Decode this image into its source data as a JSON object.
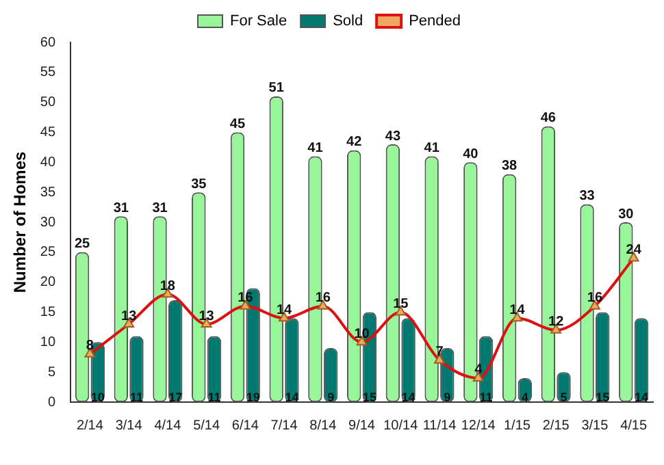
{
  "chart_data": {
    "type": "bar",
    "ylabel": "Number of Homes",
    "categories": [
      "2/14",
      "3/14",
      "4/14",
      "5/14",
      "6/14",
      "7/14",
      "8/14",
      "9/14",
      "10/14",
      "11/14",
      "12/14",
      "1/15",
      "2/15",
      "3/15",
      "4/15"
    ],
    "series": [
      {
        "name": "For Sale",
        "color": "#99f599",
        "values": [
          25,
          31,
          31,
          35,
          45,
          51,
          41,
          42,
          43,
          41,
          40,
          38,
          46,
          33,
          30
        ]
      },
      {
        "name": "Sold",
        "color": "#007a70",
        "values": [
          10,
          11,
          17,
          11,
          19,
          14,
          9,
          15,
          14,
          9,
          11,
          4,
          5,
          15,
          14
        ]
      },
      {
        "name": "Pended",
        "type": "line",
        "color": "#dd1111",
        "marker": "triangle",
        "values": [
          8,
          13,
          18,
          13,
          16,
          14,
          16,
          10,
          15,
          7,
          4,
          14,
          12,
          16,
          24
        ]
      }
    ],
    "ylim": [
      0,
      60
    ],
    "yticks": [
      0,
      5,
      10,
      15,
      20,
      25,
      30,
      35,
      40,
      45,
      50,
      55,
      60
    ],
    "grid": false,
    "legend": "top",
    "data_labels": true
  }
}
